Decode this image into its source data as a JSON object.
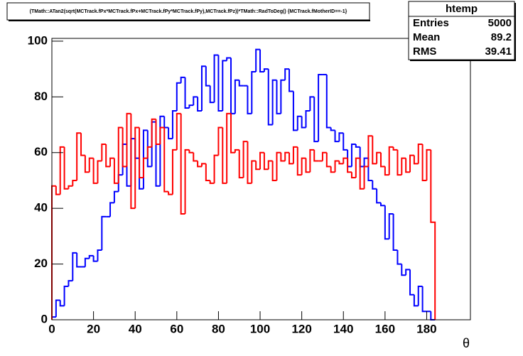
{
  "chart_data": {
    "type": "histogram",
    "title": "(TMath::ATan2(sqrt(MCTrack.fPx*MCTrack.fPx+MCTrack.fPy*MCTrack.fPy),MCTrack.fPz))*TMath::RadToDeg() {MCTrack.fMotherID==-1}",
    "x_label": "θ",
    "bins": [
      0,
      2,
      4,
      6,
      8,
      10,
      12,
      14,
      16,
      18,
      20,
      22,
      24,
      26,
      28,
      30,
      32,
      34,
      36,
      38,
      40,
      42,
      44,
      46,
      48,
      50,
      52,
      54,
      56,
      58,
      60,
      62,
      64,
      66,
      68,
      70,
      72,
      74,
      76,
      78,
      80,
      82,
      84,
      86,
      88,
      90,
      92,
      94,
      96,
      98,
      100,
      102,
      104,
      106,
      108,
      110,
      112,
      114,
      116,
      118,
      120,
      122,
      124,
      126,
      128,
      130,
      132,
      134,
      136,
      138,
      140,
      142,
      144,
      146,
      148,
      150,
      152,
      154,
      156,
      158,
      160,
      162,
      164,
      166,
      168,
      170,
      172,
      174,
      176,
      178,
      180,
      182,
      184
    ],
    "series": [
      {
        "color": "#0000ff",
        "values": [
          1,
          7,
          5,
          12,
          14,
          24,
          19,
          19,
          22,
          23,
          21,
          25,
          37,
          37,
          42,
          46,
          52,
          63,
          48,
          65,
          58,
          47,
          68,
          55,
          71,
          48,
          73,
          69,
          65,
          75,
          85,
          87,
          76,
          77,
          80,
          75,
          91,
          84,
          78,
          95,
          75,
          93,
          94,
          74,
          86,
          84,
          84,
          74,
          89,
          97,
          89,
          90,
          70,
          86,
          74,
          86,
          90,
          82,
          68,
          73,
          69,
          75,
          80,
          64,
          88,
          88,
          69,
          68,
          64,
          67,
          61,
          55,
          63,
          62,
          55,
          58,
          50,
          47,
          42,
          41,
          29,
          38,
          25,
          20,
          16,
          18,
          9,
          5,
          12,
          3,
          3,
          0
        ]
      },
      {
        "color": "#ff0000",
        "values": [
          48,
          45,
          62,
          47,
          48,
          50,
          67,
          59,
          53,
          58,
          49,
          57,
          63,
          55,
          58,
          49,
          69,
          55,
          74,
          40,
          69,
          51,
          58,
          62,
          72,
          63,
          69,
          46,
          45,
          61,
          74,
          38,
          61,
          60,
          57,
          55,
          56,
          50,
          49,
          59,
          69,
          49,
          74,
          60,
          61,
          51,
          64,
          49,
          57,
          54,
          60,
          54,
          57,
          50,
          60,
          57,
          60,
          56,
          62,
          52,
          58,
          53,
          61,
          57,
          57,
          60,
          55,
          53,
          57,
          56,
          58,
          53,
          51,
          58,
          47,
          55,
          66,
          56,
          60,
          55,
          52,
          62,
          61,
          52,
          58,
          53,
          59,
          56,
          63,
          50,
          61,
          35
        ]
      }
    ],
    "xlim": [
      0,
      201
    ],
    "ylim": [
      0,
      101
    ],
    "xticks": [
      0,
      20,
      40,
      60,
      80,
      100,
      120,
      140,
      160,
      180
    ],
    "yticks": [
      0,
      20,
      40,
      60,
      80,
      100
    ],
    "stats": {
      "title": "htemp",
      "rows": [
        {
          "label": "Entries",
          "value": 5000
        },
        {
          "label": "Mean",
          "value": 89.2
        },
        {
          "label": "RMS",
          "value": 39.41
        }
      ]
    }
  }
}
